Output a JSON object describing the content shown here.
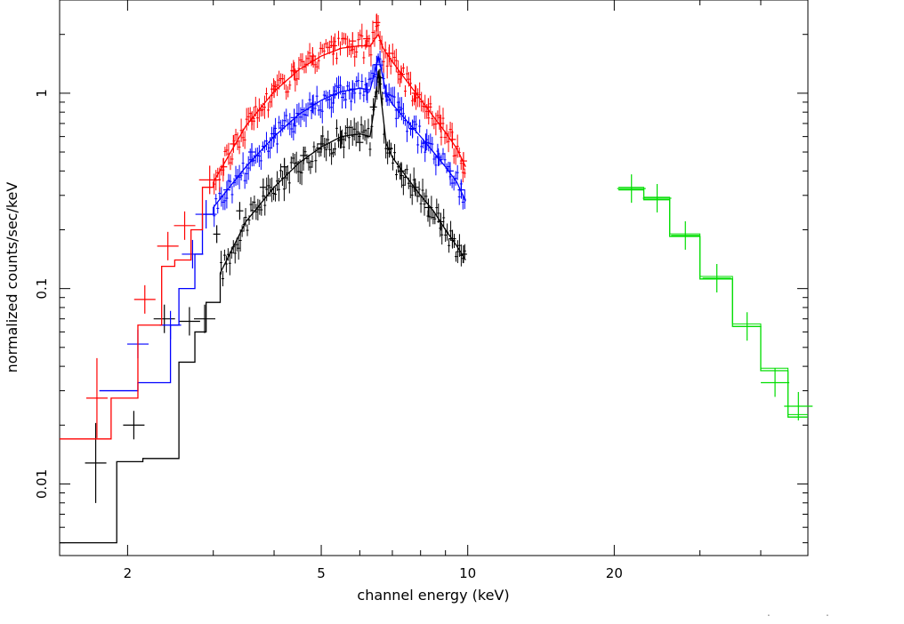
{
  "chart_data": {
    "type": "line",
    "title": "",
    "xlabel": "channel energy (keV)",
    "ylabel": "normalized counts/sec/keV",
    "xscale": "log",
    "yscale": "log",
    "xlim": [
      1.45,
      50
    ],
    "ylim": [
      0.0043,
      3.0
    ],
    "x_major_ticks": [
      {
        "value": 2,
        "label": "2"
      },
      {
        "value": 5,
        "label": "5"
      },
      {
        "value": 10,
        "label": "10"
      },
      {
        "value": 20,
        "label": "20"
      }
    ],
    "y_major_ticks": [
      {
        "value": 0.01,
        "label": "0.01"
      },
      {
        "value": 0.1,
        "label": "0.1"
      },
      {
        "value": 1,
        "label": "1"
      }
    ],
    "grid": false,
    "legend": "none",
    "series": [
      {
        "name": "black",
        "color": "#000000",
        "model": {
          "steps": [
            [
              1.45,
              1.9,
              0.005
            ],
            [
              1.9,
              2.15,
              0.013
            ],
            [
              2.15,
              2.55,
              0.0135
            ],
            [
              2.55,
              2.75,
              0.042
            ],
            [
              2.75,
              2.9,
              0.06
            ],
            [
              2.9,
              3.1,
              0.085
            ]
          ],
          "curve": [
            [
              3.1,
              0.12
            ],
            [
              3.5,
              0.22
            ],
            [
              4.0,
              0.33
            ],
            [
              4.5,
              0.44
            ],
            [
              5.0,
              0.53
            ],
            [
              5.5,
              0.6
            ],
            [
              6.0,
              0.62
            ],
            [
              6.3,
              0.6
            ],
            [
              6.45,
              0.9
            ],
            [
              6.55,
              1.3
            ],
            [
              6.65,
              0.9
            ],
            [
              6.8,
              0.55
            ],
            [
              7.0,
              0.47
            ],
            [
              7.5,
              0.37
            ],
            [
              8.0,
              0.3
            ],
            [
              8.5,
              0.25
            ],
            [
              9.0,
              0.2
            ],
            [
              9.5,
              0.165
            ],
            [
              9.9,
              0.14
            ]
          ]
        },
        "points": [
          [
            1.72,
            0.0128
          ],
          [
            2.06,
            0.02
          ],
          [
            2.38,
            0.07
          ],
          [
            2.68,
            0.068
          ],
          [
            2.88,
            0.07
          ],
          [
            3.05,
            0.19
          ],
          [
            3.4,
            0.25
          ],
          [
            3.8,
            0.33
          ],
          [
            4.2,
            0.42
          ],
          [
            4.6,
            0.48
          ],
          [
            5.0,
            0.55
          ],
          [
            5.5,
            0.58
          ],
          [
            6.0,
            0.56
          ],
          [
            6.4,
            0.85
          ],
          [
            6.6,
            1.2
          ],
          [
            6.9,
            0.52
          ],
          [
            7.3,
            0.4
          ],
          [
            7.8,
            0.33
          ],
          [
            8.3,
            0.26
          ],
          [
            8.8,
            0.22
          ],
          [
            9.3,
            0.18
          ],
          [
            9.8,
            0.15
          ]
        ]
      },
      {
        "name": "blue",
        "color": "#0000ff",
        "model": {
          "steps": [
            [
              1.75,
              2.1,
              0.03
            ],
            [
              2.1,
              2.45,
              0.033
            ],
            [
              2.45,
              2.55,
              0.065
            ],
            [
              2.55,
              2.75,
              0.1
            ],
            [
              2.75,
              2.85,
              0.15
            ],
            [
              2.85,
              3.0,
              0.24
            ]
          ],
          "curve": [
            [
              3.0,
              0.26
            ],
            [
              3.5,
              0.42
            ],
            [
              4.0,
              0.6
            ],
            [
              4.5,
              0.78
            ],
            [
              5.0,
              0.92
            ],
            [
              5.5,
              1.02
            ],
            [
              6.0,
              1.06
            ],
            [
              6.3,
              1.04
            ],
            [
              6.45,
              1.3
            ],
            [
              6.55,
              1.55
            ],
            [
              6.65,
              1.3
            ],
            [
              6.8,
              1.0
            ],
            [
              7.0,
              0.88
            ],
            [
              7.5,
              0.72
            ],
            [
              8.0,
              0.6
            ],
            [
              8.5,
              0.5
            ],
            [
              9.0,
              0.42
            ],
            [
              9.5,
              0.35
            ],
            [
              9.9,
              0.28
            ]
          ]
        },
        "points": [
          [
            2.1,
            0.052
          ],
          [
            2.45,
            0.065
          ],
          [
            2.72,
            0.15
          ],
          [
            2.9,
            0.24
          ],
          [
            3.2,
            0.32
          ],
          [
            3.6,
            0.5
          ],
          [
            4.0,
            0.62
          ],
          [
            4.4,
            0.75
          ],
          [
            4.8,
            0.88
          ],
          [
            5.3,
            0.98
          ],
          [
            5.8,
            1.05
          ],
          [
            6.2,
            1.02
          ],
          [
            6.5,
            1.4
          ],
          [
            6.8,
            1.0
          ],
          [
            7.2,
            0.82
          ],
          [
            7.7,
            0.66
          ],
          [
            8.2,
            0.56
          ],
          [
            8.7,
            0.47
          ],
          [
            9.2,
            0.4
          ],
          [
            9.7,
            0.32
          ]
        ]
      },
      {
        "name": "red",
        "color": "#ff0000",
        "model": {
          "steps": [
            [
              1.45,
              1.85,
              0.017
            ],
            [
              1.85,
              2.1,
              0.0275
            ],
            [
              2.1,
              2.35,
              0.065
            ],
            [
              2.35,
              2.5,
              0.13
            ],
            [
              2.5,
              2.7,
              0.14
            ],
            [
              2.7,
              2.85,
              0.2
            ],
            [
              2.85,
              3.0,
              0.33
            ]
          ],
          "curve": [
            [
              3.0,
              0.35
            ],
            [
              3.5,
              0.68
            ],
            [
              4.0,
              1.02
            ],
            [
              4.5,
              1.32
            ],
            [
              5.0,
              1.55
            ],
            [
              5.5,
              1.7
            ],
            [
              6.0,
              1.75
            ],
            [
              6.3,
              1.74
            ],
            [
              6.45,
              1.9
            ],
            [
              6.55,
              2.0
            ],
            [
              6.7,
              1.7
            ],
            [
              7.0,
              1.45
            ],
            [
              7.5,
              1.15
            ],
            [
              8.0,
              0.93
            ],
            [
              8.5,
              0.76
            ],
            [
              9.0,
              0.63
            ],
            [
              9.5,
              0.52
            ],
            [
              9.9,
              0.42
            ]
          ]
        },
        "points": [
          [
            1.73,
            0.0275
          ],
          [
            2.17,
            0.088
          ],
          [
            2.42,
            0.165
          ],
          [
            2.62,
            0.21
          ],
          [
            2.95,
            0.36
          ],
          [
            3.15,
            0.42
          ],
          [
            3.3,
            0.55
          ],
          [
            3.6,
            0.72
          ],
          [
            4.0,
            1.05
          ],
          [
            4.4,
            1.3
          ],
          [
            4.8,
            1.55
          ],
          [
            5.3,
            1.75
          ],
          [
            5.8,
            1.85
          ],
          [
            6.2,
            1.9
          ],
          [
            6.5,
            2.3
          ],
          [
            6.9,
            1.6
          ],
          [
            7.3,
            1.25
          ],
          [
            7.8,
            1.0
          ],
          [
            8.3,
            0.85
          ],
          [
            8.8,
            0.7
          ],
          [
            9.3,
            0.58
          ],
          [
            9.8,
            0.45
          ]
        ]
      },
      {
        "name": "green",
        "color": "#00dd00",
        "model": {
          "steps": [
            [
              20.4,
              23.0,
              0.32
            ],
            [
              23.0,
              26.0,
              0.285
            ],
            [
              26.0,
              30.0,
              0.185
            ],
            [
              30.0,
              35.0,
              0.112
            ],
            [
              35.0,
              40.0,
              0.064
            ],
            [
              40.0,
              45.5,
              0.038
            ],
            [
              45.5,
              50.0,
              0.022
            ]
          ]
        },
        "points": [
          [
            21.7,
            0.325
          ],
          [
            24.5,
            0.29
          ],
          [
            28.0,
            0.187
          ],
          [
            32.5,
            0.113
          ],
          [
            37.5,
            0.064
          ],
          [
            42.8,
            0.033
          ],
          [
            47.8,
            0.025
          ]
        ]
      }
    ]
  },
  "page": {
    "marks": [
      ".",
      "."
    ]
  }
}
